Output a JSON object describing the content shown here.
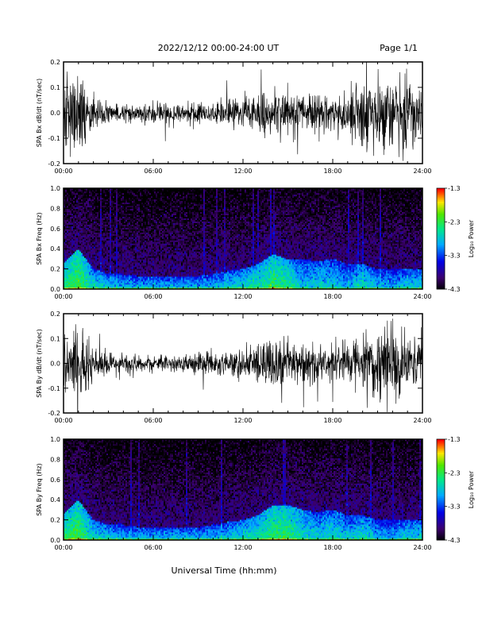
{
  "header": {
    "title": "2022/12/12  00:00-24:00 UT",
    "page": "Page 1/1"
  },
  "footer": {
    "xlabel": "Universal Time (hh:mm)"
  },
  "colors": {
    "trace": "#000000",
    "axis": "#000000"
  },
  "chart_data": [
    {
      "type": "line",
      "ylabel": "SPA Bx dB/dt (nT/sec)",
      "xlim": [
        0,
        24
      ],
      "ylim": [
        -0.2,
        0.2
      ],
      "x_ticks": [
        "00:00",
        "06:00",
        "12:00",
        "18:00",
        "24:00"
      ],
      "y_ticks": [
        "-0.2",
        "-0.1",
        "0.0",
        "0.1",
        "0.2"
      ],
      "series": [
        {
          "x": [
            0,
            1,
            2,
            3,
            4,
            5,
            6,
            7,
            8,
            9,
            10,
            11,
            12,
            13,
            14,
            15,
            16,
            17,
            18,
            19,
            20,
            21,
            22,
            23,
            24
          ],
          "amplitude": [
            0.2,
            0.2,
            0.1,
            0.05,
            0.04,
            0.04,
            0.05,
            0.06,
            0.04,
            0.05,
            0.06,
            0.06,
            0.08,
            0.09,
            0.12,
            0.12,
            0.1,
            0.08,
            0.1,
            0.12,
            0.2,
            0.16,
            0.15,
            0.2,
            0.12
          ]
        }
      ]
    },
    {
      "type": "heatmap",
      "ylabel": "SPA Bx Freq (Hz)",
      "colorbar_label": "Log₁₀ Power",
      "xlim": [
        0,
        24
      ],
      "ylim": [
        0,
        1.0
      ],
      "x_ticks": [
        "00:00",
        "06:00",
        "12:00",
        "18:00",
        "24:00"
      ],
      "y_ticks": [
        "0.0",
        "0.2",
        "0.4",
        "0.6",
        "0.8",
        "1.0"
      ],
      "colorbar_ticks": [
        "-1.3",
        "-2.3",
        "-3.3",
        "-4.3"
      ],
      "crange": [
        -4.3,
        -1.3
      ],
      "x_hours": [
        0,
        1,
        2,
        3,
        4,
        5,
        6,
        7,
        8,
        9,
        10,
        11,
        12,
        13,
        14,
        15,
        16,
        17,
        18,
        19,
        20,
        21,
        22,
        23,
        24
      ],
      "low_freq_power": [
        -2.3,
        -2.2,
        -2.6,
        -2.7,
        -2.8,
        -2.8,
        -2.8,
        -2.8,
        -2.8,
        -2.8,
        -2.8,
        -2.7,
        -2.6,
        -2.5,
        -2.3,
        -2.4,
        -2.8,
        -2.7,
        -2.7,
        -2.9,
        -2.6,
        -2.8,
        -2.9,
        -2.7,
        -2.7
      ],
      "band_top_freq": [
        0.25,
        0.4,
        0.2,
        0.15,
        0.15,
        0.13,
        0.13,
        0.13,
        0.13,
        0.13,
        0.15,
        0.18,
        0.2,
        0.25,
        0.35,
        0.3,
        0.3,
        0.28,
        0.3,
        0.25,
        0.25,
        0.2,
        0.2,
        0.2,
        0.2
      ]
    },
    {
      "type": "line",
      "ylabel": "SPA By dB/dt (nT/sec)",
      "xlim": [
        0,
        24
      ],
      "ylim": [
        -0.2,
        0.2
      ],
      "x_ticks": [
        "00:00",
        "06:00",
        "12:00",
        "18:00",
        "24:00"
      ],
      "y_ticks": [
        "-0.2",
        "-0.1",
        "0.0",
        "0.1",
        "0.2"
      ],
      "series": [
        {
          "x": [
            0,
            1,
            2,
            3,
            4,
            5,
            6,
            7,
            8,
            9,
            10,
            11,
            12,
            13,
            14,
            15,
            16,
            17,
            18,
            19,
            20,
            21,
            22,
            23,
            24
          ],
          "amplitude": [
            0.15,
            0.2,
            0.1,
            0.06,
            0.05,
            0.04,
            0.04,
            0.04,
            0.04,
            0.05,
            0.06,
            0.06,
            0.08,
            0.09,
            0.15,
            0.12,
            0.12,
            0.08,
            0.1,
            0.12,
            0.15,
            0.16,
            0.2,
            0.15,
            0.1
          ]
        }
      ]
    },
    {
      "type": "heatmap",
      "ylabel": "SPA By Freq (Hz)",
      "colorbar_label": "Log₁₀ Power",
      "xlim": [
        0,
        24
      ],
      "ylim": [
        0,
        1.0
      ],
      "x_ticks": [
        "00:00",
        "06:00",
        "12:00",
        "18:00",
        "24:00"
      ],
      "y_ticks": [
        "0.0",
        "0.2",
        "0.4",
        "0.6",
        "0.8",
        "1.0"
      ],
      "colorbar_ticks": [
        "-1.3",
        "-2.3",
        "-3.3",
        "-4.3"
      ],
      "crange": [
        -4.3,
        -1.3
      ],
      "x_hours": [
        0,
        1,
        2,
        3,
        4,
        5,
        6,
        7,
        8,
        9,
        10,
        11,
        12,
        13,
        14,
        15,
        16,
        17,
        18,
        19,
        20,
        21,
        22,
        23,
        24
      ],
      "low_freq_power": [
        -2.3,
        -2.2,
        -2.6,
        -2.7,
        -2.8,
        -2.8,
        -2.8,
        -2.8,
        -2.8,
        -2.8,
        -2.8,
        -2.7,
        -2.6,
        -2.5,
        -2.3,
        -2.3,
        -2.6,
        -2.7,
        -2.6,
        -2.8,
        -2.6,
        -2.8,
        -2.9,
        -2.7,
        -2.7
      ],
      "band_top_freq": [
        0.25,
        0.4,
        0.2,
        0.15,
        0.15,
        0.13,
        0.13,
        0.13,
        0.13,
        0.13,
        0.15,
        0.18,
        0.2,
        0.25,
        0.35,
        0.35,
        0.3,
        0.28,
        0.3,
        0.25,
        0.25,
        0.2,
        0.2,
        0.2,
        0.2
      ]
    }
  ]
}
